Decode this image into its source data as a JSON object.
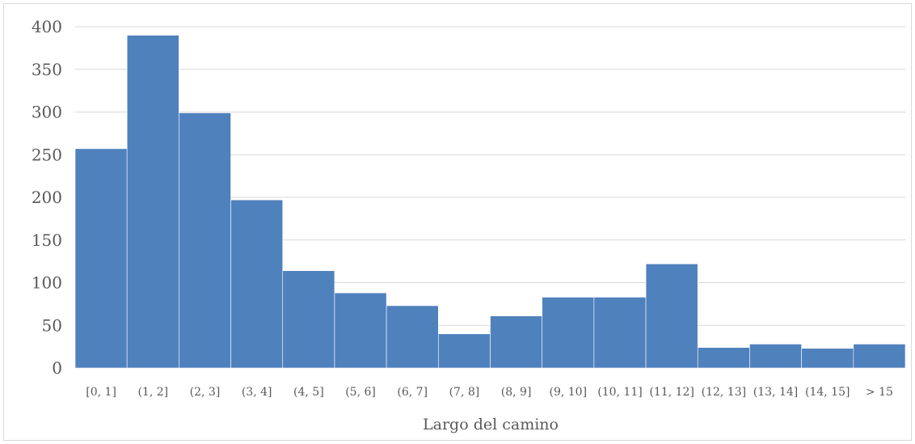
{
  "chart_data": {
    "type": "bar",
    "title": "",
    "xlabel": "Largo del camino",
    "ylabel": "",
    "categories": [
      "[0, 1]",
      "(1, 2]",
      "(2, 3]",
      "(3, 4]",
      "(4, 5]",
      "(5, 6]",
      "(6, 7]",
      "(7, 8]",
      "(8, 9]",
      "(9, 10]",
      "(10, 11]",
      "(11, 12]",
      "(12, 13]",
      "(13, 14]",
      "(14, 15]",
      "> 15"
    ],
    "values": [
      257,
      390,
      299,
      197,
      114,
      88,
      73,
      40,
      61,
      83,
      83,
      122,
      24,
      28,
      23,
      28
    ],
    "ylim": [
      0,
      400
    ],
    "yticks": [
      0,
      50,
      100,
      150,
      200,
      250,
      300,
      350,
      400
    ],
    "grid": true,
    "legend": "none",
    "bar_color": "#4f81bd",
    "gridline_color": "#d9d9d9",
    "text_color": "#595959"
  }
}
